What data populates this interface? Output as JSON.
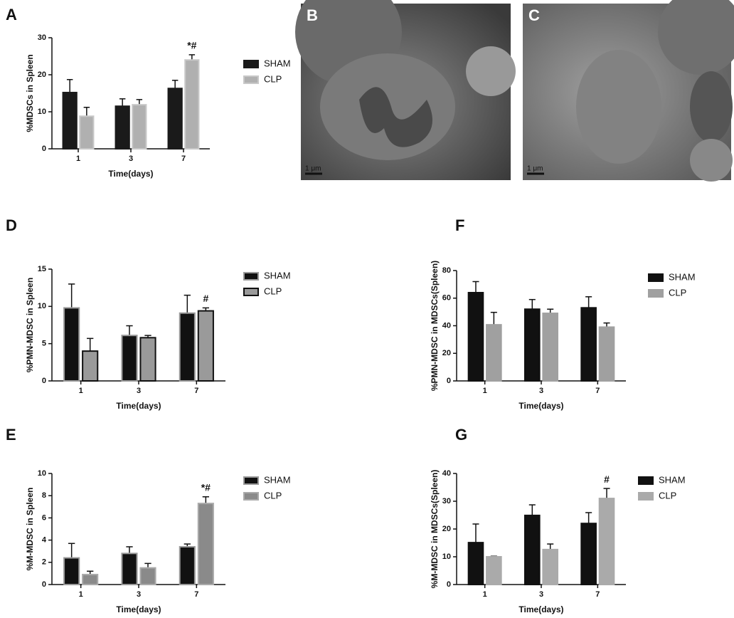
{
  "chart_data": [
    {
      "type": "bar",
      "panel": "A",
      "ylabel": "%MDSCs in Spleen",
      "xlabel": "Time(days)",
      "categories": [
        "1",
        "3",
        "7"
      ],
      "ylim": [
        0,
        30
      ],
      "yticks": [
        0,
        10,
        20,
        30
      ],
      "series": [
        {
          "name": "SHAM",
          "color": "#1a1a1a",
          "edge": "#1a1a1a",
          "values": [
            15.2,
            11.5,
            16.3
          ],
          "errors": [
            3.5,
            2.0,
            2.2
          ]
        },
        {
          "name": "CLP",
          "color": "#b0b0b0",
          "edge": "#c8c8c8",
          "values": [
            8.8,
            11.9,
            24.0
          ],
          "errors": [
            2.4,
            1.4,
            1.4
          ],
          "annotations": [
            null,
            null,
            "*#"
          ]
        }
      ]
    },
    {
      "type": "bar",
      "panel": "D",
      "ylabel": "%PMN-MDSC in Spleen",
      "xlabel": "Time(days)",
      "categories": [
        "1",
        "3",
        "7"
      ],
      "ylim": [
        0,
        15
      ],
      "yticks": [
        0,
        5,
        10,
        15
      ],
      "series": [
        {
          "name": "SHAM",
          "color": "#111111",
          "edge": "#999999",
          "values": [
            9.8,
            6.1,
            9.1
          ],
          "errors": [
            3.2,
            1.3,
            2.4
          ]
        },
        {
          "name": "CLP",
          "color": "#9a9a9a",
          "edge": "#111111",
          "values": [
            4.0,
            5.8,
            9.4
          ],
          "errors": [
            1.7,
            0.3,
            0.4
          ],
          "annotations": [
            null,
            null,
            "#"
          ]
        }
      ]
    },
    {
      "type": "bar",
      "panel": "E",
      "ylabel": "%M-MDSC in Spleen",
      "xlabel": "Time(days)",
      "categories": [
        "1",
        "3",
        "7"
      ],
      "ylim": [
        0,
        10
      ],
      "yticks": [
        0,
        2,
        4,
        6,
        8,
        10
      ],
      "series": [
        {
          "name": "SHAM",
          "color": "#111111",
          "edge": "#999999",
          "values": [
            2.4,
            2.8,
            3.4
          ],
          "errors": [
            1.3,
            0.6,
            0.25
          ]
        },
        {
          "name": "CLP",
          "color": "#8a8a8a",
          "edge": "#aaaaaa",
          "values": [
            0.9,
            1.5,
            7.3
          ],
          "errors": [
            0.3,
            0.4,
            0.6
          ],
          "annotations": [
            null,
            null,
            "*#"
          ]
        }
      ]
    },
    {
      "type": "bar",
      "panel": "F",
      "ylabel": "%PMN-MDSC in MDSCs(Spleen)",
      "xlabel": "Time(days)",
      "categories": [
        "1",
        "3",
        "7"
      ],
      "ylim": [
        0,
        80
      ],
      "yticks": [
        0,
        20,
        40,
        60,
        80
      ],
      "series": [
        {
          "name": "SHAM",
          "color": "#111111",
          "edge": "#111111",
          "values": [
            64,
            52,
            53
          ],
          "errors": [
            8,
            7,
            8
          ]
        },
        {
          "name": "CLP",
          "color": "#a0a0a0",
          "edge": "#a0a0a0",
          "values": [
            40.7,
            49,
            39
          ],
          "errors": [
            9,
            3,
            3
          ]
        }
      ]
    },
    {
      "type": "bar",
      "panel": "G",
      "ylabel": "%M-MDSC in MDSCs(Spleen)",
      "xlabel": "Time(days)",
      "categories": [
        "1",
        "3",
        "7"
      ],
      "ylim": [
        0,
        40
      ],
      "yticks": [
        0,
        10,
        20,
        30,
        40
      ],
      "series": [
        {
          "name": "SHAM",
          "color": "#111111",
          "edge": "#111111",
          "values": [
            15.1,
            24.9,
            22.0
          ],
          "errors": [
            6.7,
            3.8,
            3.9
          ]
        },
        {
          "name": "CLP",
          "color": "#aaaaaa",
          "edge": "#aaaaaa",
          "values": [
            10.0,
            12.6,
            31.0
          ],
          "errors": [
            0.2,
            2.0,
            3.6
          ],
          "annotations": [
            null,
            null,
            "#"
          ]
        }
      ]
    }
  ],
  "images": [
    {
      "panel": "B",
      "scale": "1 μm"
    },
    {
      "panel": "C",
      "scale": "1 μm"
    }
  ]
}
